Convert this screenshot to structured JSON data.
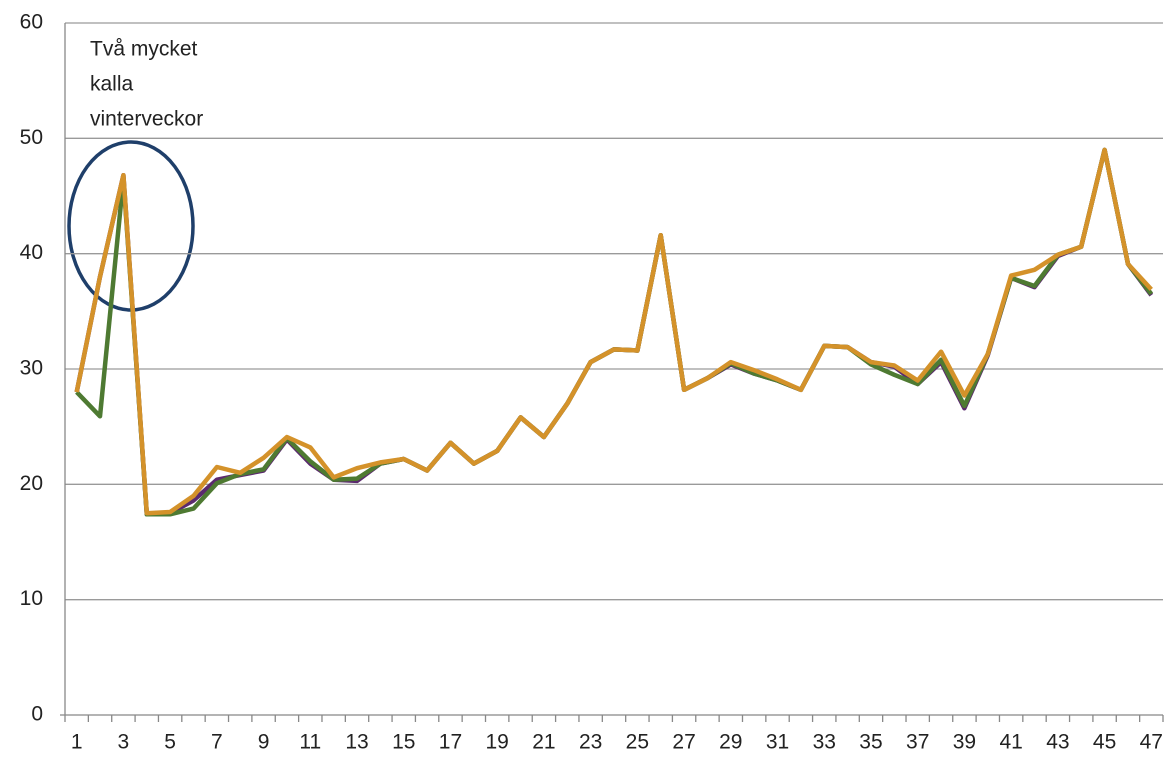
{
  "chart_data": {
    "type": "line",
    "categories": [
      1,
      null,
      3,
      null,
      5,
      null,
      7,
      null,
      9,
      null,
      11,
      null,
      13,
      null,
      15,
      null,
      17,
      null,
      19,
      null,
      21,
      null,
      23,
      null,
      25,
      null,
      27,
      null,
      29,
      null,
      31,
      null,
      33,
      null,
      35,
      null,
      37,
      null,
      39,
      null,
      41,
      null,
      43,
      null,
      45,
      null,
      47
    ],
    "series": [
      {
        "color": "#5b2a6e",
        "values": [
          28,
          38,
          46.8,
          17.4,
          17.5,
          18.6,
          20.4,
          20.8,
          21.2,
          23.9,
          21.8,
          20.4,
          20.3,
          21.8,
          22.2,
          21.2,
          23.6,
          21.8,
          22.9,
          25.8,
          24.1,
          27,
          30.6,
          31.7,
          31.6,
          41.6,
          28.2,
          29.2,
          30.4,
          29.6,
          29,
          28.2,
          32,
          31.9,
          30.6,
          30.2,
          28.7,
          30.6,
          26.6,
          31.2,
          37.9,
          37.1,
          39.8,
          40.6,
          49,
          39.1,
          36.4
        ]
      },
      {
        "color": "#4e7a32",
        "values": [
          28,
          25.9,
          46.5,
          17.4,
          17.4,
          17.9,
          20.1,
          20.9,
          21.3,
          24,
          22,
          20.4,
          20.5,
          21.8,
          22.2,
          21.2,
          23.6,
          21.8,
          22.9,
          25.8,
          24.1,
          27,
          30.6,
          31.7,
          31.6,
          41.6,
          28.2,
          29.2,
          30.5,
          29.6,
          29,
          28.2,
          32,
          31.9,
          30.4,
          29.5,
          28.7,
          30.8,
          26.8,
          31.3,
          37.9,
          37.2,
          39.9,
          40.6,
          49,
          39.1,
          36.5
        ]
      },
      {
        "color": "#d4922a",
        "values": [
          28,
          38,
          46.8,
          17.5,
          17.6,
          19,
          21.5,
          21,
          22.3,
          24.1,
          23.2,
          20.6,
          21.4,
          21.9,
          22.2,
          21.2,
          23.6,
          21.8,
          22.9,
          25.8,
          24.1,
          27,
          30.6,
          31.7,
          31.6,
          41.6,
          28.2,
          29.2,
          30.6,
          29.9,
          29.1,
          28.2,
          32,
          31.9,
          30.6,
          30.3,
          29,
          31.5,
          27.7,
          31.3,
          38.1,
          38.6,
          39.9,
          40.6,
          49,
          39.1,
          36.9
        ]
      }
    ],
    "ylim": [
      0,
      60
    ],
    "yticks": [
      0,
      10,
      20,
      30,
      40,
      50,
      60
    ],
    "grid": true,
    "annotation": [
      "Två mycket",
      "kalla",
      "vinterveckor"
    ]
  }
}
